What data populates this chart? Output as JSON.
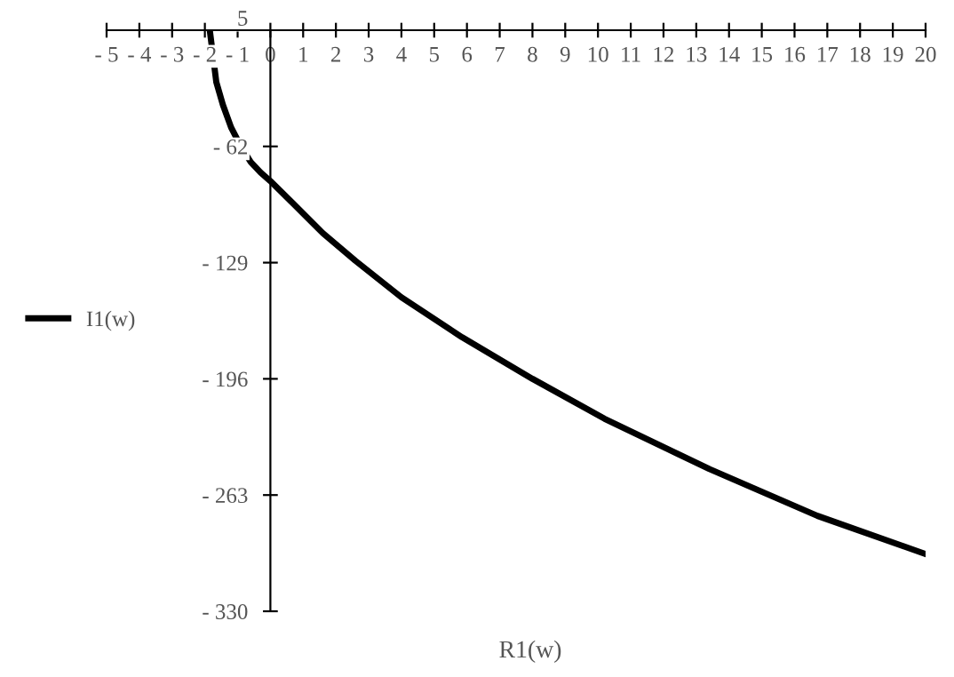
{
  "chart_data": {
    "type": "line",
    "xlabel": "R1(w)",
    "series": [
      {
        "name": "I1(w)",
        "color": "#000000",
        "x": [
          -1.85,
          -1.65,
          -1.45,
          -1.2,
          -0.9,
          -0.6,
          -0.3,
          0,
          0.7,
          1.6,
          2.6,
          4.0,
          5.85,
          8.0,
          10.2,
          13.4,
          16.7,
          20
        ],
        "values": [
          5,
          -25,
          -38,
          -51,
          -62,
          -71,
          -77,
          -82,
          -95,
          -112,
          -128,
          -149,
          -172,
          -196,
          -219,
          -248,
          -275,
          -297
        ]
      }
    ],
    "xlim": [
      -5,
      20
    ],
    "ylim": [
      -330,
      5
    ],
    "xticks": [
      {
        "value": -5,
        "label": "- 5"
      },
      {
        "value": -4,
        "label": "- 4"
      },
      {
        "value": -3,
        "label": "- 3"
      },
      {
        "value": -2,
        "label": "- 2"
      },
      {
        "value": -1,
        "label": "- 1"
      },
      0,
      1,
      2,
      3,
      4,
      5,
      6,
      7,
      8,
      9,
      10,
      11,
      12,
      13,
      14,
      15,
      16,
      17,
      18,
      19,
      20
    ],
    "yticks": [
      5,
      {
        "value": -62,
        "label": "- 62"
      },
      {
        "value": -129,
        "label": "- 129"
      },
      {
        "value": -196,
        "label": "- 196"
      },
      {
        "value": -263,
        "label": "- 263"
      },
      {
        "value": -330,
        "label": "- 330"
      }
    ],
    "grid": false,
    "legend": "left",
    "marker": "none",
    "line_style": "solid"
  }
}
